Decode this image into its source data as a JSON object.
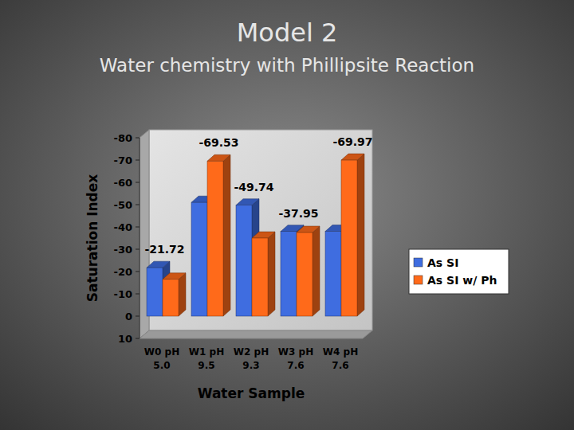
{
  "chart_data": {
    "type": "bar",
    "title": "Model 2",
    "subtitle": "Water chemistry with Phillipsite Reaction",
    "x_label": "Water Sample",
    "y_label": "Saturation Index",
    "categories": [
      "W0 pH 5.0",
      "W1 pH 9.5",
      "W2 pH 9.3",
      "W3 pH 7.6",
      "W4 pH 7.6"
    ],
    "series": [
      {
        "name": "As SI",
        "color": "#3f6de0",
        "values": [
          -21.72,
          -51,
          -49.74,
          -37.95,
          -38
        ],
        "value_labels": [
          "-21.72",
          null,
          "-49.74",
          "-37.95",
          null
        ]
      },
      {
        "name": "As SI w/ Ph",
        "color": "#ff6a1a",
        "values": [
          -16.5,
          -69.53,
          -35,
          -37.5,
          -69.97
        ],
        "value_labels": [
          null,
          "-69.53",
          null,
          null,
          "-69.97"
        ]
      }
    ],
    "ylim": [
      10,
      -80
    ],
    "yticks": [
      10,
      0,
      -10,
      -20,
      -30,
      -40,
      -50,
      -60,
      -70,
      -80
    ],
    "grid": false,
    "legend": "right",
    "data_labels": true
  }
}
